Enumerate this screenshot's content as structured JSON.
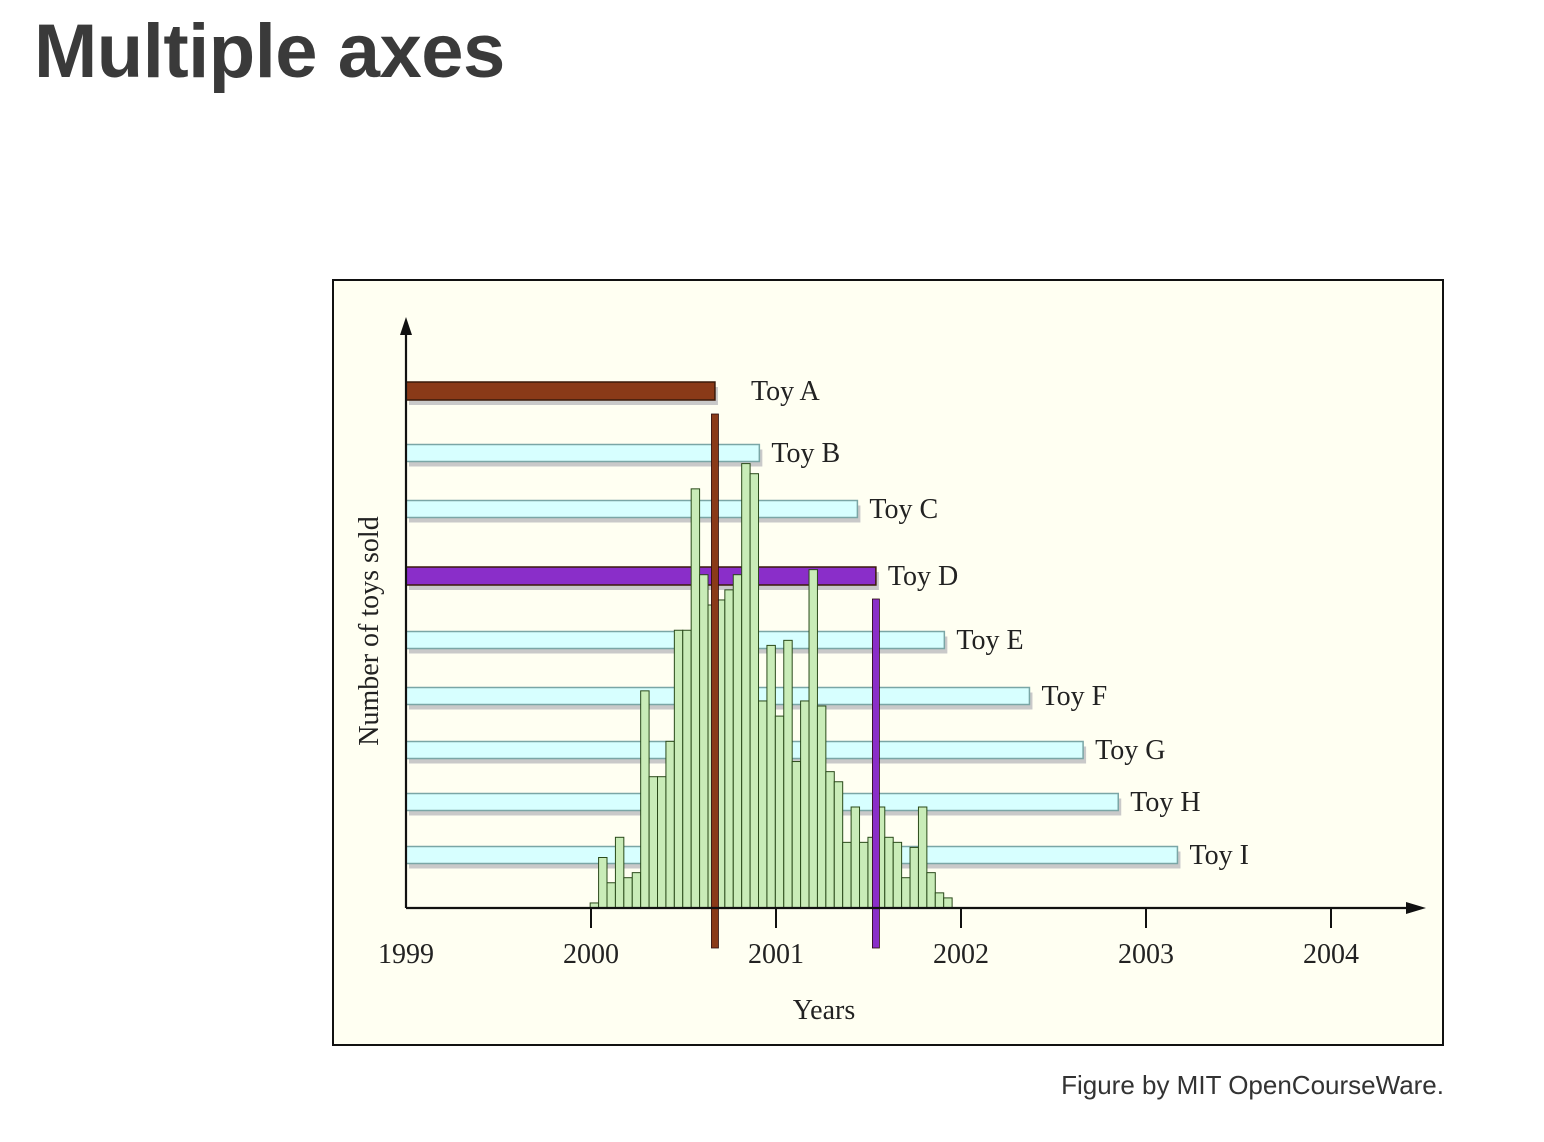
{
  "page": {
    "title": "Multiple axes",
    "credit": "Figure by MIT OpenCourseWare."
  },
  "colors": {
    "timeline_bar": "#d7ffff",
    "timeline_bar_border": "#7aa6a6",
    "highlight_a": "#8a3a18",
    "highlight_d": "#8a2ec9",
    "histogram_fill": "#c9ecb8",
    "histogram_stroke": "#2a4a1a",
    "background": "#fffff2"
  },
  "chart_data": {
    "type": "bar",
    "xlabel": "Years",
    "ylabel": "Number of toys sold",
    "xlim": [
      1999,
      2004.5
    ],
    "x_ticks": [
      1999,
      2000,
      2001,
      2002,
      2003,
      2004
    ],
    "grid": false,
    "timelines": [
      {
        "label": "Toy A",
        "start": 1999,
        "end": 2000.67,
        "highlight": "a"
      },
      {
        "label": "Toy B",
        "start": 1999,
        "end": 2000.91,
        "highlight": null
      },
      {
        "label": "Toy C",
        "start": 1999,
        "end": 2001.44,
        "highlight": null
      },
      {
        "label": "Toy D",
        "start": 1999,
        "end": 2001.54,
        "highlight": "d"
      },
      {
        "label": "Toy E",
        "start": 1999,
        "end": 2001.91,
        "highlight": null
      },
      {
        "label": "Toy F",
        "start": 1999,
        "end": 2002.37,
        "highlight": null
      },
      {
        "label": "Toy G",
        "start": 1999,
        "end": 2002.66,
        "highlight": null
      },
      {
        "label": "Toy H",
        "start": 1999,
        "end": 2002.85,
        "highlight": null
      },
      {
        "label": "Toy I",
        "start": 1999,
        "end": 2003.17,
        "highlight": null
      }
    ],
    "markers": [
      {
        "x": 2000.67,
        "color_key": "highlight_a"
      },
      {
        "x": 2001.54,
        "color_key": "highlight_d"
      }
    ],
    "histogram": {
      "bin_start": 1999.9955,
      "bin_width": 0.0455,
      "values": [
        1,
        10,
        5,
        14,
        6,
        7,
        43,
        26,
        26,
        33,
        55,
        55,
        83,
        66,
        60,
        61,
        63,
        66,
        88,
        86,
        41,
        52,
        38,
        53,
        29,
        41,
        67,
        40,
        27,
        25,
        13,
        20,
        13,
        14,
        20,
        14,
        13,
        6,
        12,
        20,
        7,
        3,
        2
      ]
    }
  }
}
